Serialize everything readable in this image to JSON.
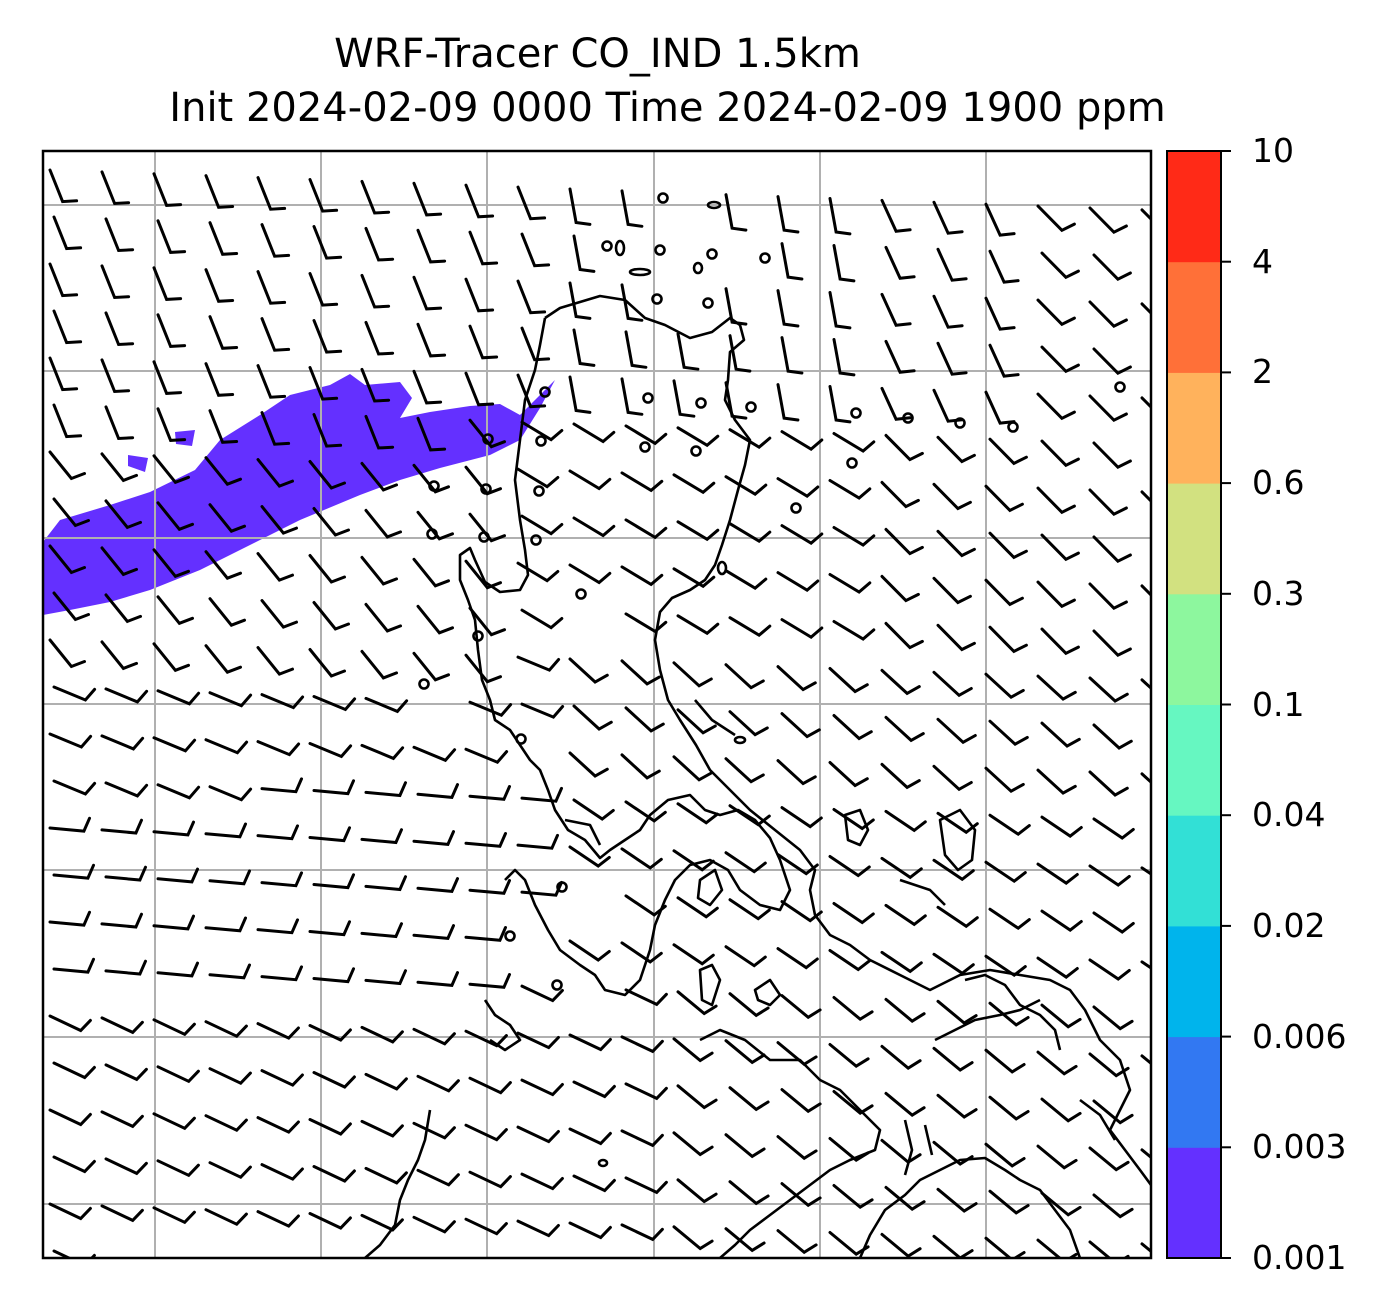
{
  "title": {
    "line1": "WRF-Tracer CO_IND 1.5km",
    "line2": "Init 2024-02-09 0000 Time 2024-02-09 1900 ppm"
  },
  "colorbar": {
    "levels": [
      "0.001",
      "0.003",
      "0.006",
      "0.02",
      "0.04",
      "0.1",
      "0.3",
      "0.6",
      "2",
      "4",
      "10"
    ],
    "colors": [
      "#6430FF",
      "#3278F2",
      "#00B4EC",
      "#32E0D6",
      "#66F7C1",
      "#8DF79E",
      "#D2E180",
      "#FFB25C",
      "#FF7038",
      "#FF2A17"
    ]
  },
  "map": {
    "plume_color": "#6430FF",
    "coastline_color": "#000000",
    "grid_color": "#b0b0b0",
    "wind_barbs": "northeasterly-to-easterly"
  }
}
